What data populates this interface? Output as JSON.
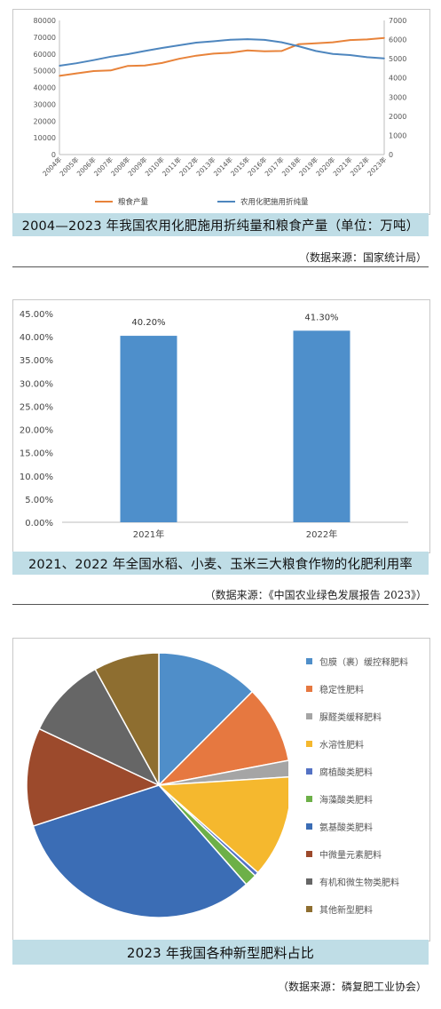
{
  "charts": [
    {
      "caption": "2004—2023 年我国农用化肥施用折纯量和粮食产量（单位：万吨）",
      "source": "（数据来源：国家统计局）"
    },
    {
      "caption": "2021、2022 年全国水稻、小麦、玉米三大粮食作物的化肥利用率",
      "source": "（数据来源：《中国农业绿色发展报告 2023》）"
    },
    {
      "caption": "2023 年我国各种新型肥料占比",
      "source": "（数据来源：磷复肥工业协会）"
    }
  ],
  "chart_data": [
    {
      "type": "line",
      "x": [
        "2004年",
        "2005年",
        "2006年",
        "2007年",
        "2008年",
        "2009年",
        "2010年",
        "2011年",
        "2012年",
        "2013年",
        "2014年",
        "2015年",
        "2016年",
        "2017年",
        "2018年",
        "2019年",
        "2020年",
        "2021年",
        "2022年",
        "2023年"
      ],
      "series": [
        {
          "name": "粮食产量",
          "axis": "left",
          "color": "#e8833a",
          "values": [
            46947,
            48402,
            49804,
            50160,
            52871,
            53082,
            54648,
            57121,
            58958,
            60194,
            60703,
            62144,
            61625,
            61791,
            65789,
            66384,
            66949,
            68285,
            68653,
            69541
          ]
        },
        {
          "name": "农用化肥施用折纯量",
          "axis": "right",
          "color": "#4e86be",
          "values": [
            4637,
            4766,
            4928,
            5108,
            5239,
            5404,
            5562,
            5704,
            5839,
            5912,
            5996,
            6023,
            5984,
            5859,
            5653,
            5404,
            5251,
            5191,
            5079,
            5022
          ]
        }
      ],
      "y_left": {
        "min": 0,
        "max": 80000,
        "ticks": [
          "0",
          "10000",
          "20000",
          "30000",
          "40000",
          "50000",
          "60000",
          "70000",
          "80000"
        ]
      },
      "y_right": {
        "min": 0,
        "max": 7000,
        "ticks": [
          "0",
          "1000",
          "2000",
          "3000",
          "4000",
          "5000",
          "6000",
          "7000"
        ]
      },
      "legend_position": "bottom",
      "grid": false
    },
    {
      "type": "bar",
      "categories": [
        "2021年",
        "2022年"
      ],
      "values": [
        40.2,
        41.3
      ],
      "labels": [
        "40.20%",
        "41.30%"
      ],
      "color": "#4e8fcb",
      "ylim": [
        0,
        45
      ],
      "y_ticks": [
        "0.00%",
        "5.00%",
        "10.00%",
        "15.00%",
        "20.00%",
        "25.00%",
        "30.00%",
        "35.00%",
        "40.00%",
        "45.00%"
      ],
      "grid": false
    },
    {
      "type": "pie",
      "legend_position": "right",
      "slices": [
        {
          "label": "包膜（裹）缓控释肥料",
          "value": 12.5,
          "color": "#4f8ec9"
        },
        {
          "label": "稳定性肥料",
          "value": 9.5,
          "color": "#e67840"
        },
        {
          "label": "脲醛类缓释肥料",
          "value": 2.0,
          "color": "#a5a5a5"
        },
        {
          "label": "水溶性肥料",
          "value": 12.5,
          "color": "#f5b82e"
        },
        {
          "label": "腐植酸类肥料",
          "value": 0.5,
          "color": "#5472c4"
        },
        {
          "label": "海藻酸类肥料",
          "value": 1.5,
          "color": "#6db048"
        },
        {
          "label": "氨基酸类肥料",
          "value": 31.5,
          "color": "#3b6db5"
        },
        {
          "label": "中微量元素肥料",
          "value": 12.0,
          "color": "#9c4a2c"
        },
        {
          "label": "有机和微生物类肥料",
          "value": 10.0,
          "color": "#666666"
        },
        {
          "label": "其他新型肥料",
          "value": 8.0,
          "color": "#8e6e30"
        }
      ]
    }
  ]
}
